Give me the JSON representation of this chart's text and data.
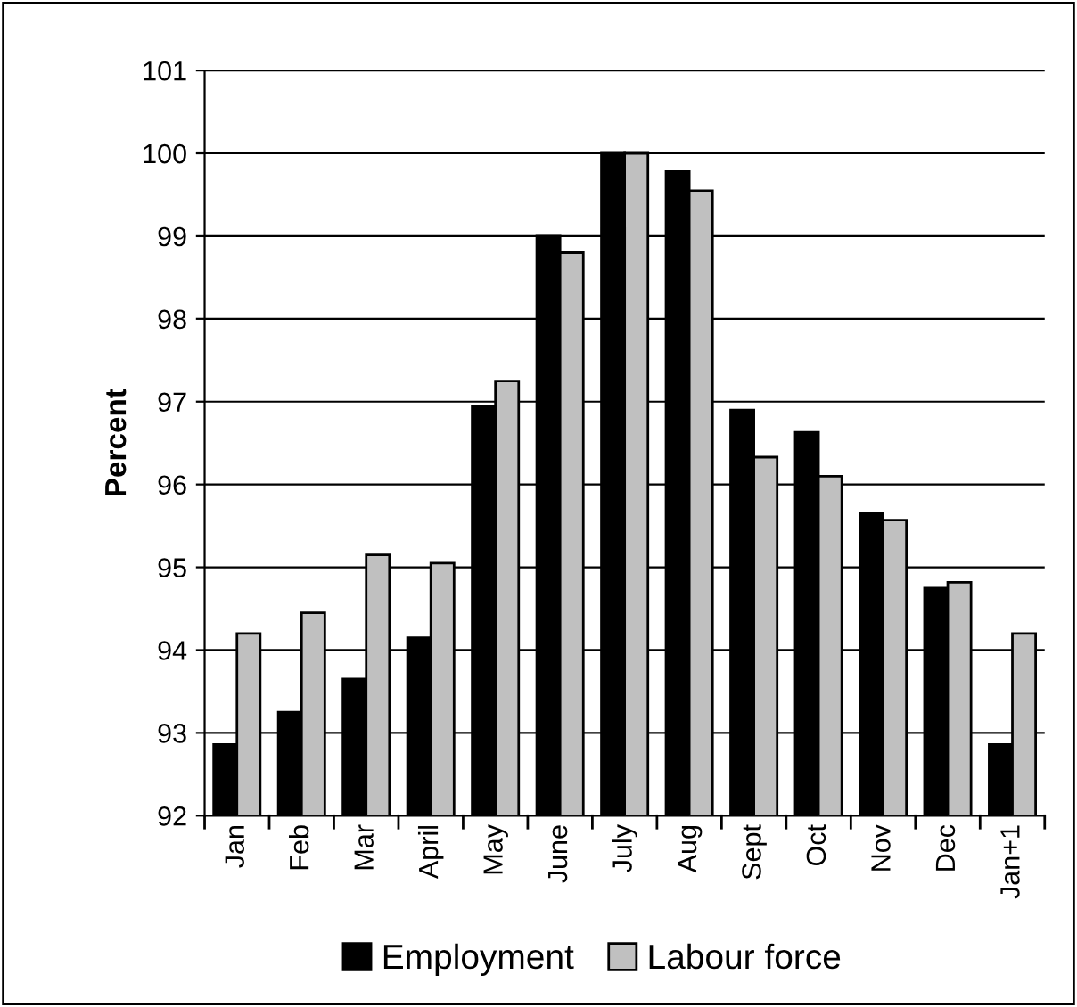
{
  "chart_data": {
    "type": "bar",
    "ylabel": "Percent",
    "categories": [
      "Jan",
      "Feb",
      "Mar",
      "April",
      "May",
      "June",
      "July",
      "Aug",
      "Sept",
      "Oct",
      "Nov",
      "Dec",
      "Jan+1"
    ],
    "series": [
      {
        "name": "Employment",
        "color": "#000000",
        "values": [
          92.86,
          93.25,
          93.65,
          94.15,
          96.95,
          99.0,
          100.0,
          99.78,
          96.9,
          96.63,
          95.65,
          94.75,
          92.86
        ]
      },
      {
        "name": "Labour force",
        "color": "#c0c0c0",
        "values": [
          94.2,
          94.45,
          95.15,
          95.05,
          97.25,
          98.8,
          100.0,
          99.55,
          96.33,
          96.1,
          95.57,
          94.82,
          94.2
        ]
      }
    ],
    "ylim": [
      92,
      101
    ],
    "yticks": [
      92,
      93,
      94,
      95,
      96,
      97,
      98,
      99,
      100,
      101
    ],
    "grid": "y",
    "legend": "bottom"
  }
}
